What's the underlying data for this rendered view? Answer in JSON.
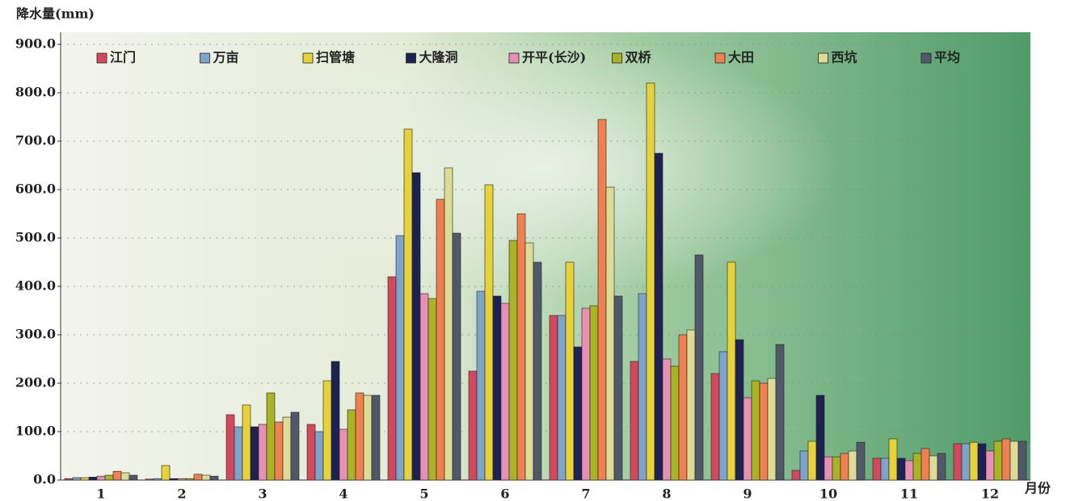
{
  "chart_data": {
    "type": "bar",
    "y_label": "降水量(mm)",
    "x_label": "月份",
    "categories": [
      "1",
      "2",
      "3",
      "4",
      "5",
      "6",
      "7",
      "8",
      "9",
      "10",
      "11",
      "12"
    ],
    "series": [
      {
        "name": "江门",
        "color": "#d44a5c",
        "values": [
          3,
          2,
          135,
          115,
          420,
          225,
          340,
          245,
          220,
          20,
          45,
          75
        ]
      },
      {
        "name": "万亩",
        "color": "#7ea4cc",
        "values": [
          5,
          3,
          110,
          100,
          505,
          390,
          340,
          385,
          265,
          60,
          45,
          75
        ]
      },
      {
        "name": "扫管塘",
        "color": "#e8d23a",
        "values": [
          5,
          30,
          155,
          205,
          725,
          610,
          450,
          820,
          450,
          80,
          85,
          78
        ]
      },
      {
        "name": "大隆洞",
        "color": "#1e2252",
        "values": [
          6,
          3,
          110,
          245,
          635,
          380,
          275,
          675,
          290,
          175,
          45,
          75
        ]
      },
      {
        "name": "开平(长沙)",
        "color": "#e890b4",
        "values": [
          8,
          3,
          115,
          105,
          385,
          365,
          355,
          250,
          170,
          48,
          40,
          60
        ]
      },
      {
        "name": "双桥",
        "color": "#a8b424",
        "values": [
          10,
          3,
          180,
          145,
          375,
          495,
          360,
          235,
          205,
          48,
          55,
          80
        ]
      },
      {
        "name": "大田",
        "color": "#f08050",
        "values": [
          18,
          12,
          120,
          180,
          580,
          550,
          745,
          300,
          200,
          55,
          65,
          85
        ]
      },
      {
        "name": "西坑",
        "color": "#dcdc94",
        "values": [
          15,
          10,
          130,
          175,
          645,
          490,
          605,
          310,
          210,
          60,
          50,
          80
        ]
      },
      {
        "name": "平均",
        "color": "#50586a",
        "values": [
          10,
          8,
          140,
          175,
          510,
          450,
          380,
          465,
          280,
          78,
          55,
          80
        ]
      }
    ],
    "ylim": [
      0,
      900
    ],
    "yticks": [
      {
        "value": 0,
        "label": "0.0"
      },
      {
        "value": 100,
        "label": "100.0"
      },
      {
        "value": 200,
        "label": "200.0"
      },
      {
        "value": 300,
        "label": "300.0"
      },
      {
        "value": 400,
        "label": "400.0"
      },
      {
        "value": 500,
        "label": "500.0"
      },
      {
        "value": 600,
        "label": "600.0"
      },
      {
        "value": 700,
        "label": "700.0"
      },
      {
        "value": 800,
        "label": "800.0"
      },
      {
        "value": 900,
        "label": "900.0"
      }
    ],
    "grid": true,
    "legend": "top"
  }
}
